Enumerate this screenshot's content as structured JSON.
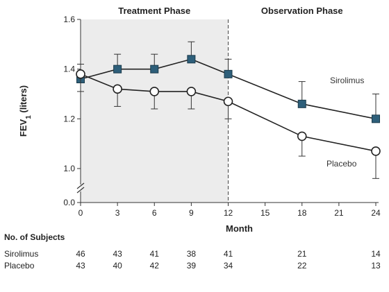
{
  "chart_data": {
    "type": "line",
    "title": "",
    "xlabel": "Month",
    "ylabel_main": "FEV",
    "ylabel_sub": "1",
    "ylabel_unit": "(liters)",
    "x_ticks": [
      0,
      3,
      6,
      9,
      12,
      15,
      18,
      21,
      24
    ],
    "y_ticks": [
      "0.0",
      "1.0",
      "1.2",
      "1.4",
      "1.6"
    ],
    "y_axis_break": true,
    "xlim": [
      0,
      24
    ],
    "ylim": [
      0.0,
      1.6
    ],
    "phases": [
      {
        "label": "Treatment Phase",
        "x_start": 0,
        "x_end": 12,
        "color": "#ececec"
      },
      {
        "label": "Observation Phase",
        "x_start": 12,
        "x_end": 24,
        "color": "#ffffff"
      }
    ],
    "series": [
      {
        "name": "Sirolimus",
        "marker": "square",
        "color": "#2e5f7a",
        "x": [
          0,
          3,
          6,
          9,
          12,
          18,
          24
        ],
        "y": [
          1.36,
          1.4,
          1.4,
          1.44,
          1.38,
          1.26,
          1.2
        ],
        "err_upper": [
          1.42,
          1.46,
          1.46,
          1.51,
          1.44,
          1.35,
          1.3
        ]
      },
      {
        "name": "Placebo",
        "marker": "circle",
        "color": "#ffffff",
        "x": [
          0,
          3,
          6,
          9,
          12,
          18,
          24
        ],
        "y": [
          1.38,
          1.32,
          1.31,
          1.31,
          1.27,
          1.13,
          1.07
        ],
        "err_lower": [
          1.31,
          1.25,
          1.24,
          1.24,
          1.2,
          1.05,
          0.96
        ]
      }
    ]
  },
  "subjects": {
    "title": "No. of Subjects",
    "months": [
      0,
      3,
      6,
      9,
      12,
      18,
      24
    ],
    "rows": [
      {
        "name": "Sirolimus",
        "values": [
          "46",
          "43",
          "41",
          "38",
          "41",
          "21",
          "14"
        ]
      },
      {
        "name": "Placebo",
        "values": [
          "43",
          "40",
          "42",
          "39",
          "34",
          "22",
          "13"
        ]
      }
    ]
  }
}
